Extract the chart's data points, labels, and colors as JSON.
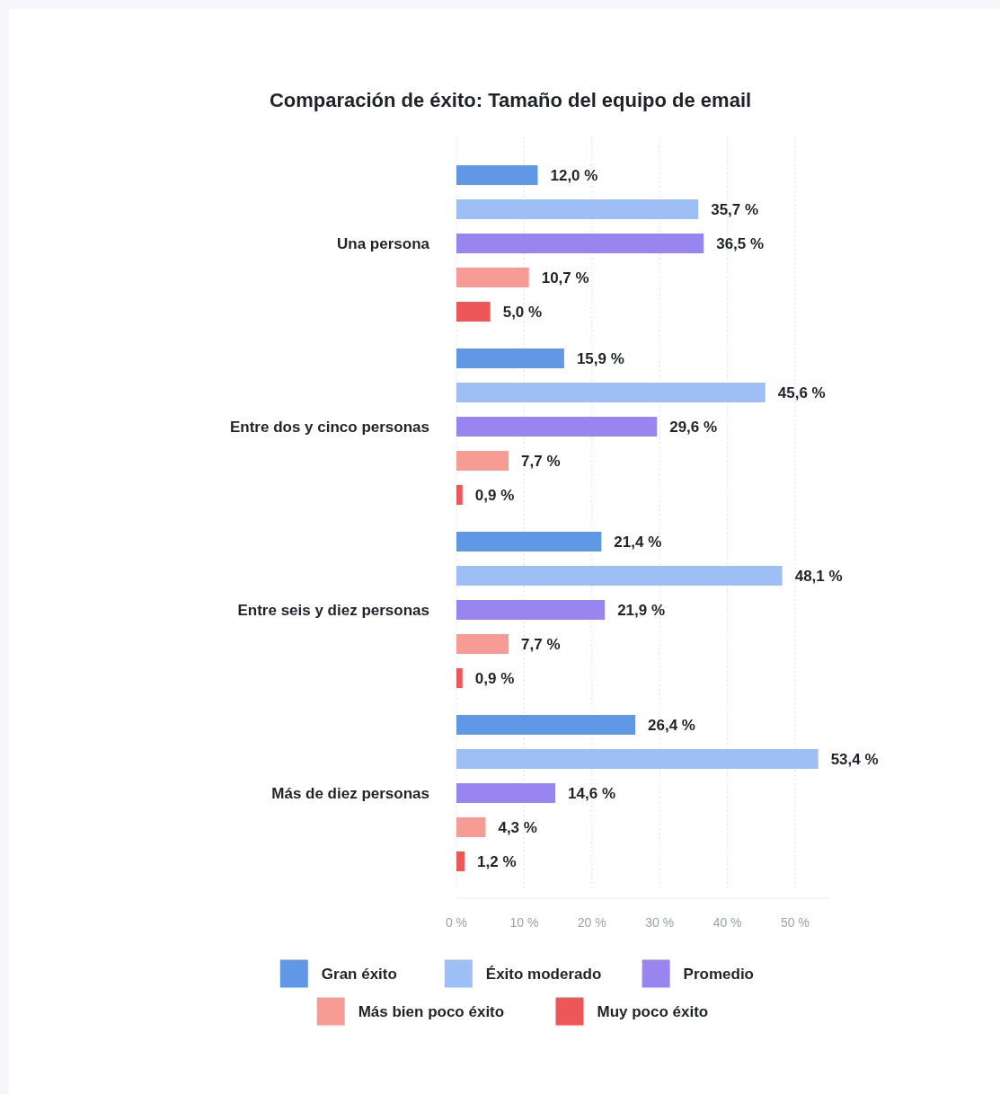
{
  "chart_data": {
    "type": "bar",
    "orientation": "horizontal",
    "title": "Comparación de éxito: Tamaño del equipo de email",
    "categories": [
      "Una persona",
      "Entre dos y cinco personas",
      "Entre seis y diez personas",
      "Más de diez personas"
    ],
    "series": [
      {
        "name": "Gran éxito",
        "color": "#6098e6",
        "values": [
          12.0,
          15.9,
          21.4,
          26.4
        ],
        "value_labels": [
          "12,0 %",
          "15,9 %",
          "21,4 %",
          "26,4 %"
        ]
      },
      {
        "name": "Éxito moderado",
        "color": "#9dbff5",
        "values": [
          35.7,
          45.6,
          48.1,
          53.4
        ],
        "value_labels": [
          "35,7 %",
          "45,6 %",
          "48,1 %",
          "53,4 %"
        ]
      },
      {
        "name": "Promedio",
        "color": "#9985f0",
        "values": [
          36.5,
          29.6,
          21.9,
          14.6
        ],
        "value_labels": [
          "36,5 %",
          "29,6 %",
          "21,9 %",
          "14,6 %"
        ]
      },
      {
        "name": "Más bien poco éxito",
        "color": "#f79b95",
        "values": [
          10.7,
          7.7,
          7.7,
          4.3
        ],
        "value_labels": [
          "10,7 %",
          "7,7 %",
          "7,7 %",
          "4,3 %"
        ]
      },
      {
        "name": "Muy poco éxito",
        "color": "#ee5758",
        "values": [
          5.0,
          0.9,
          0.9,
          1.2
        ],
        "value_labels": [
          "5,0 %",
          "0,9 %",
          "0,9 %",
          "1,2 %"
        ]
      }
    ],
    "xlim": [
      0,
      55
    ],
    "xticks": [
      {
        "value": 0,
        "label": "0 %"
      },
      {
        "value": 10,
        "label": "10 %"
      },
      {
        "value": 20,
        "label": "20 %"
      },
      {
        "value": 30,
        "label": "30 %"
      },
      {
        "value": 40,
        "label": "40 %"
      },
      {
        "value": 50,
        "label": "50 %"
      }
    ],
    "grid": "x",
    "legend": "bottom"
  }
}
